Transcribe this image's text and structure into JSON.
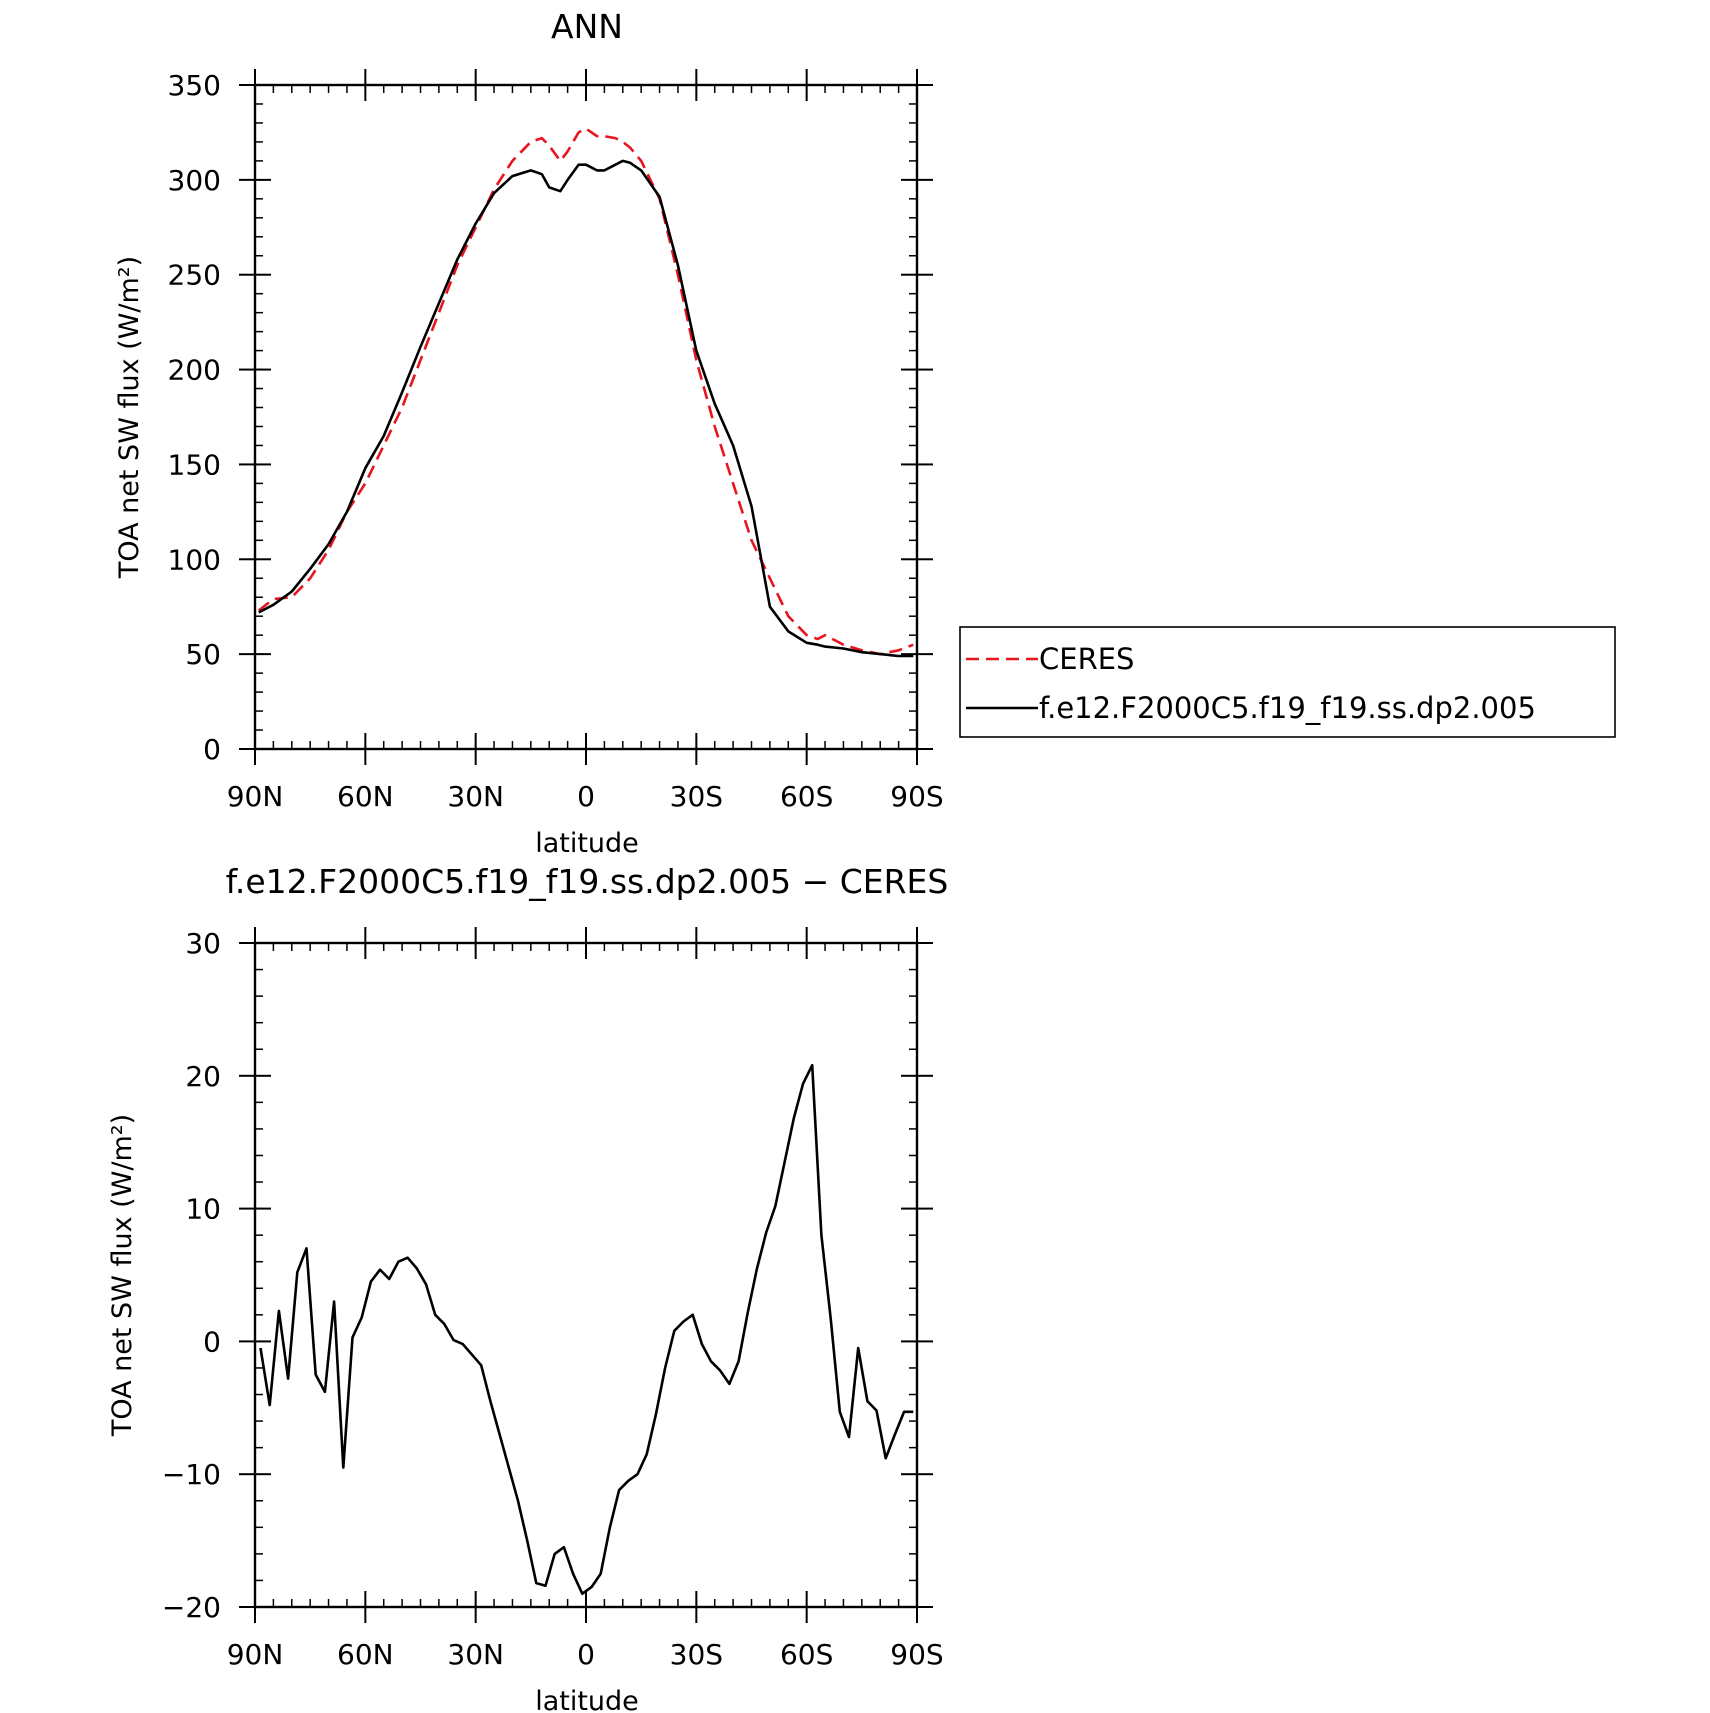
{
  "chart_data": [
    {
      "type": "line",
      "title": "ANN",
      "xlabel": "latitude",
      "ylabel": "TOA net SW flux (W/m²)",
      "xlim": [
        90,
        -90
      ],
      "ylim": [
        0,
        350
      ],
      "xticks": [
        90,
        60,
        30,
        0,
        -30,
        -60,
        -90
      ],
      "xtick_labels": [
        "90N",
        "60N",
        "30N",
        "0",
        "30S",
        "60S",
        "90S"
      ],
      "yticks": [
        0,
        50,
        100,
        150,
        200,
        250,
        300,
        350
      ],
      "ytick_labels": [
        "0",
        "50",
        "100",
        "150",
        "200",
        "250",
        "300",
        "350"
      ],
      "legend_position": "right",
      "x": [
        89,
        85,
        80,
        75,
        70,
        65,
        60,
        55,
        50,
        45,
        40,
        35,
        30,
        25,
        20,
        15,
        12,
        10,
        7,
        5,
        2,
        0,
        -3,
        -5,
        -8,
        -10,
        -12,
        -15,
        -20,
        -25,
        -30,
        -35,
        -40,
        -45,
        -50,
        -55,
        -60,
        -63,
        -65,
        -70,
        -75,
        -80,
        -85,
        -89
      ],
      "series": [
        {
          "name": "CERES",
          "color": "#e8141e",
          "dash": "dashed",
          "values": [
            73,
            79,
            80,
            90,
            105,
            125,
            140,
            160,
            180,
            205,
            230,
            255,
            275,
            295,
            310,
            320,
            322,
            318,
            310,
            315,
            325,
            327,
            323,
            323,
            322,
            320,
            317,
            310,
            290,
            250,
            205,
            170,
            140,
            110,
            90,
            70,
            60,
            58,
            60,
            55,
            52,
            50,
            52,
            55
          ]
        },
        {
          "name": "f.e12.F2000C5.f19_f19.ss.dp2.005",
          "color": "#000000",
          "dash": "solid",
          "values": [
            72,
            76,
            83,
            95,
            108,
            125,
            148,
            165,
            188,
            212,
            235,
            258,
            277,
            293,
            302,
            305,
            303,
            296,
            294,
            300,
            308,
            308,
            305,
            305,
            308,
            310,
            309,
            305,
            291,
            255,
            210,
            182,
            160,
            128,
            75,
            62,
            56,
            55,
            54,
            53,
            51,
            50,
            49,
            49
          ]
        }
      ]
    },
    {
      "type": "line",
      "title": "f.e12.F2000C5.f19_f19.ss.dp2.005 − CERES",
      "xlabel": "latitude",
      "ylabel": "TOA net SW flux (W/m²)",
      "xlim": [
        90,
        -90
      ],
      "ylim": [
        -20,
        30
      ],
      "xticks": [
        90,
        60,
        30,
        0,
        -30,
        -60,
        -90
      ],
      "xtick_labels": [
        "90N",
        "60N",
        "30N",
        "0",
        "30S",
        "60S",
        "90S"
      ],
      "yticks": [
        -20,
        -10,
        0,
        10,
        20,
        30
      ],
      "ytick_labels": [
        "−20",
        "−10",
        "0",
        "10",
        "20",
        "30"
      ],
      "x": [
        88.5,
        86,
        83.5,
        81,
        78.5,
        76,
        73.5,
        71,
        68.5,
        66,
        63.5,
        61,
        58.5,
        56,
        53.5,
        51,
        48.5,
        46,
        43.5,
        41,
        38.5,
        36,
        33.5,
        31,
        28.5,
        26,
        23.5,
        21,
        18.5,
        16,
        13.5,
        11,
        8.5,
        6,
        3.5,
        1,
        -1.5,
        -4,
        -6.5,
        -9,
        -11.5,
        -14,
        -16.5,
        -19,
        -21.5,
        -24,
        -26.5,
        -29,
        -31.5,
        -34,
        -36.5,
        -39,
        -41.5,
        -44,
        -46.5,
        -49,
        -51.5,
        -54,
        -56.5,
        -59,
        -61.5,
        -64,
        -66.5,
        -69,
        -71.5,
        -74,
        -76.5,
        -79,
        -81.5,
        -84,
        -86.5,
        -89
      ],
      "series": [
        {
          "name": "",
          "color": "#000000",
          "dash": "solid",
          "values": [
            -0.5,
            -4.8,
            2.3,
            -2.8,
            5.2,
            7.0,
            -2.5,
            -3.8,
            3.0,
            -9.5,
            0.3,
            1.8,
            4.5,
            5.4,
            4.7,
            6.0,
            6.3,
            5.5,
            4.3,
            2.0,
            1.3,
            0.1,
            -0.2,
            -1.0,
            -1.8,
            -4.5,
            -7.0,
            -9.5,
            -12.0,
            -15.0,
            -18.2,
            -18.4,
            -16.0,
            -15.5,
            -17.5,
            -19.0,
            -18.5,
            -17.5,
            -14.0,
            -11.2,
            -10.5,
            -10.0,
            -8.5,
            -5.5,
            -2.0,
            0.8,
            1.5,
            2.0,
            -0.2,
            -1.5,
            -2.2,
            -3.2,
            -1.5,
            2.2,
            5.5,
            8.2,
            10.2,
            13.5,
            16.8,
            19.4,
            20.8,
            8.0,
            1.8,
            -5.3,
            -7.2,
            -0.5,
            -4.5,
            -5.2,
            -8.8,
            -7.0,
            -5.3,
            -5.3
          ]
        }
      ]
    }
  ]
}
